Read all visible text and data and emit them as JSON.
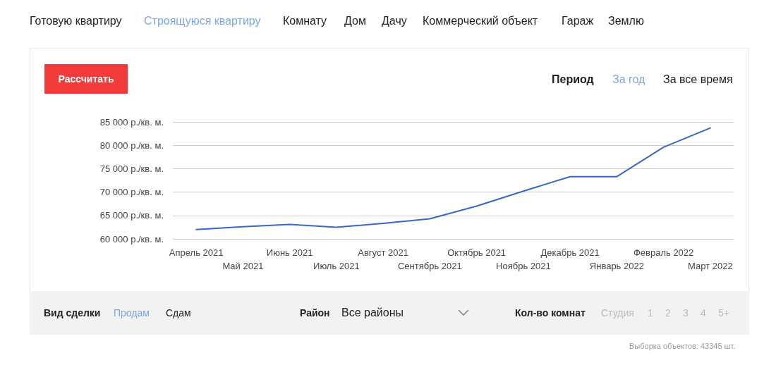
{
  "chart_data": {
    "type": "line",
    "categories": [
      "Апрель 2021",
      "Май 2021",
      "Июнь 2021",
      "Июль 2021",
      "Август 2021",
      "Сентябрь 2021",
      "Октябрь 2021",
      "Ноябрь 2021",
      "Декабрь 2021",
      "Январь 2022",
      "Февраль 2022",
      "Март 2022"
    ],
    "series": [
      {
        "color": "#3a66c4",
        "values": [
          62000,
          62600,
          63100,
          62500,
          63300,
          64300,
          67000,
          70200,
          73300,
          73300,
          79600,
          83700
        ]
      }
    ],
    "ylim": [
      60000,
      85000
    ],
    "yticks": [
      {
        "value": 60000,
        "label": "60 000 р./кв. м."
      },
      {
        "value": 65000,
        "label": "65 000 р./кв. м."
      },
      {
        "value": 70000,
        "label": "70 000 р./кв. м."
      },
      {
        "value": 75000,
        "label": "75 000 р./кв. м."
      },
      {
        "value": 80000,
        "label": "80 000 р./кв. м."
      },
      {
        "value": 85000,
        "label": "85 000 р./кв. м."
      }
    ],
    "grid": "y",
    "marker": "none",
    "line_style": "solid",
    "annotations": [
      "Готовую квартиру",
      "Строящуюся квартиру",
      "Комнату",
      "Дом",
      "Дачу",
      "Коммерческий объект",
      "Гараж",
      "Землю",
      "Рассчитать",
      "Период",
      "За год",
      "За все время",
      "Вид сделки",
      "Продам",
      "Сдам",
      "Район",
      "Все районы",
      "Кол-во комнат",
      "Студия",
      "1",
      "2",
      "3",
      "4",
      "5+",
      "Выборка объектов: 43345 шт."
    ]
  }
}
